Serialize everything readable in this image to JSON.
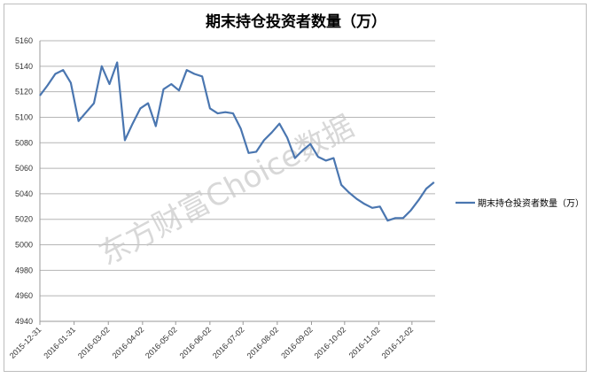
{
  "chart_data": {
    "type": "line",
    "title": "期末持仓投资者数量（万）",
    "xlabel": "",
    "ylabel": "",
    "ylim": [
      4940,
      5160
    ],
    "yticks": [
      4940,
      4960,
      4980,
      5000,
      5020,
      5040,
      5060,
      5080,
      5100,
      5120,
      5140,
      5160
    ],
    "xticks": [
      "2015-12-31",
      "2016-01-31",
      "2016-03-02",
      "2016-04-02",
      "2016-05-02",
      "2016-06-02",
      "2016-07-02",
      "2016-08-02",
      "2016-09-02",
      "2016-10-02",
      "2016-11-02",
      "2016-12-02"
    ],
    "xlim": [
      "2015-12-31",
      "2016-12-23"
    ],
    "grid": "horizontal",
    "legend_position": "right",
    "series": [
      {
        "name": "期末持仓投资者数量（万）",
        "color": "#4a76b0",
        "x": [
          "2015-12-31",
          "2016-01-07",
          "2016-01-14",
          "2016-01-21",
          "2016-01-28",
          "2016-02-04",
          "2016-02-11",
          "2016-02-18",
          "2016-02-25",
          "2016-03-03",
          "2016-03-10",
          "2016-03-17",
          "2016-03-24",
          "2016-03-31",
          "2016-04-07",
          "2016-04-14",
          "2016-04-21",
          "2016-04-28",
          "2016-05-05",
          "2016-05-12",
          "2016-05-19",
          "2016-05-26",
          "2016-06-02",
          "2016-06-09",
          "2016-06-16",
          "2016-06-23",
          "2016-06-30",
          "2016-07-07",
          "2016-07-14",
          "2016-07-21",
          "2016-07-28",
          "2016-08-04",
          "2016-08-11",
          "2016-08-18",
          "2016-08-25",
          "2016-09-01",
          "2016-09-08",
          "2016-09-15",
          "2016-09-22",
          "2016-09-29",
          "2016-10-06",
          "2016-10-13",
          "2016-10-20",
          "2016-10-27",
          "2016-11-03",
          "2016-11-10",
          "2016-11-17",
          "2016-11-24",
          "2016-12-01",
          "2016-12-08",
          "2016-12-15",
          "2016-12-22"
        ],
        "values": [
          5117,
          5125,
          5134,
          5137,
          5127,
          5097,
          5104,
          5111,
          5140,
          5126,
          5143,
          5082,
          5095,
          5107,
          5111,
          5093,
          5122,
          5126,
          5121,
          5137,
          5134,
          5132,
          5107,
          5103,
          5104,
          5103,
          5091,
          5072,
          5073,
          5082,
          5088,
          5095,
          5084,
          5068,
          5074,
          5079,
          5069,
          5066,
          5068,
          5047,
          5041,
          5036,
          5032,
          5029,
          5030,
          5019,
          5021,
          5021,
          5027,
          5035,
          5044,
          5049
        ]
      }
    ],
    "watermark": "东方财富Choice数据"
  }
}
